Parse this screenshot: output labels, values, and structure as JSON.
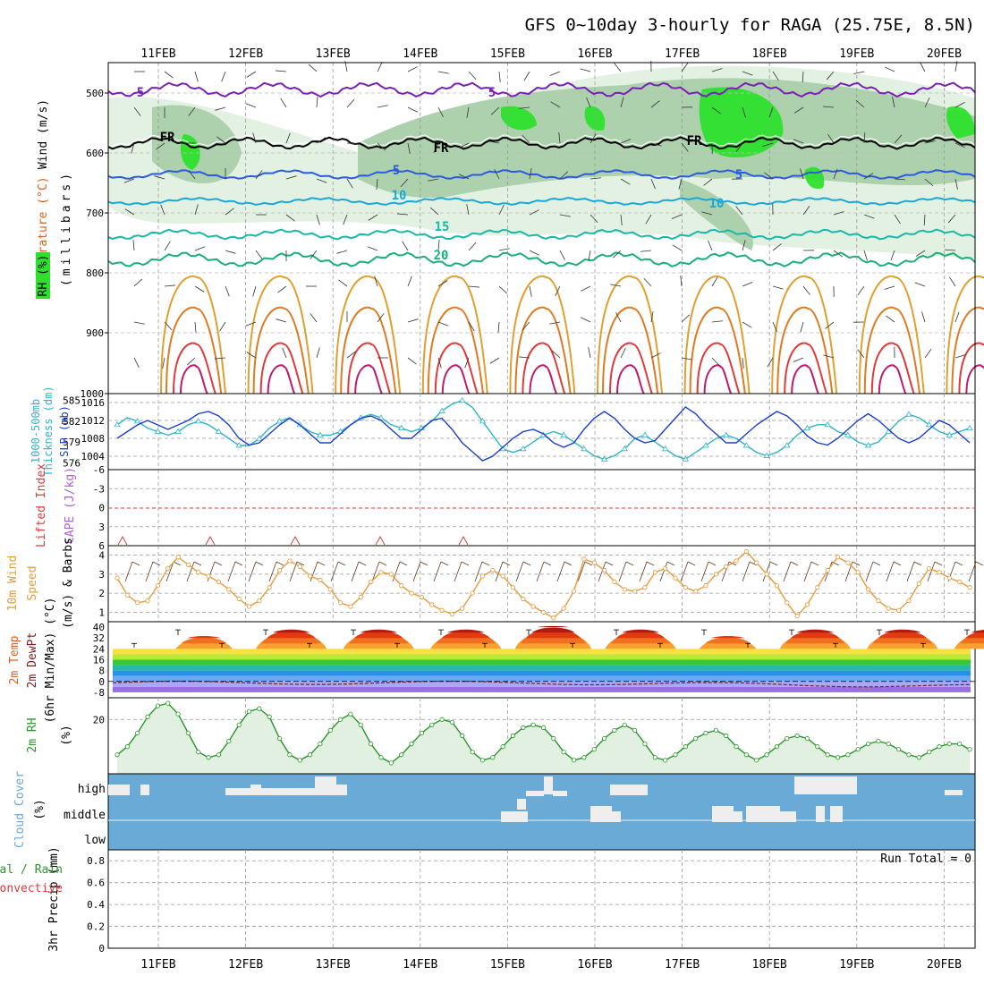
{
  "title": "GFS 0~10day 3-hourly for RAGA (25.75E, 8.5N)",
  "dates": [
    "11FEB",
    "12FEB",
    "13FEB",
    "14FEB",
    "15FEB",
    "16FEB",
    "17FEB",
    "18FEB",
    "19FEB",
    "20FEB"
  ],
  "colors": {
    "rh_dark": "#2ee02e",
    "rh_mid": "#a9cfa9",
    "rh_light": "#e2f0e2",
    "slp": "#1a3fcf",
    "thickness": "#2fb3c8",
    "wind_speed": "#e89a3c",
    "rh2m": "#2a962a",
    "cloud": "#6aaad6",
    "cloud_gap": "#eeeeee",
    "temp_purple": "#7a1fb8",
    "temp_blue": "#2a5be0",
    "temp_cyan": "#1aa8d8",
    "temp_teal": "#1ab8a8",
    "temp_green": "#18b078",
    "temp_orange": "#e0a030",
    "temp_red": "#e03a3a"
  },
  "panels": {
    "sounding": {
      "ylabel_wind": "Wind (m/s)",
      "ylabel_temp": "Temperature (°C)",
      "ylabel_rh": "RH (%)",
      "ylabel_units": "(millibars)",
      "ticks": [
        "500",
        "600",
        "700",
        "800",
        "900",
        "1000"
      ],
      "contour_labels": [
        "5",
        "5",
        "FR",
        "FR",
        "FR",
        "5",
        "5",
        "10",
        "10",
        "15",
        "20"
      ]
    },
    "slp": {
      "ylabel_thick": "1000-500mb",
      "ylabel_thick2": "Thickness (dm)",
      "ylabel_slp": "SLP (mb)",
      "left_ticks": [
        "585",
        "582",
        "579",
        "576"
      ],
      "right_ticks": [
        "1016",
        "1012",
        "1008",
        "1004"
      ]
    },
    "cape": {
      "ylabel_li": "Lifted Index",
      "ylabel_cape": "CAPE (J/kg)",
      "ticks": [
        "-6",
        "-3",
        "0",
        "3",
        "6"
      ]
    },
    "wind": {
      "ylabel1": "10m Wind",
      "ylabel2": "Speed",
      "ylabel3": "(m/s) & Barbs",
      "ticks": [
        "4",
        "3",
        "2",
        "1"
      ]
    },
    "temp": {
      "ylabel1": "2m Temp",
      "ylabel2": "2m DewPt",
      "ylabel3": "(6hr Min/Max) (°C)",
      "ticks": [
        "40",
        "32",
        "24",
        "16",
        "8",
        "0",
        "-8"
      ]
    },
    "rh": {
      "ylabel": "2m RH",
      "units": "(%)",
      "ticks": [
        "20"
      ]
    },
    "cloud": {
      "ylabel": "Cloud Cover",
      "units": "(%)",
      "levels": [
        "high",
        "middle",
        "low"
      ]
    },
    "precip": {
      "ylabel1": "3hr Precip (mm)",
      "ylabel_total": "Total / Rain",
      "ylabel_conv": "Convective",
      "run_total": "Run Total = 0",
      "ticks": [
        "0.8",
        "0.6",
        "0.4",
        "0.2",
        "0"
      ]
    }
  },
  "chart_data": [
    {
      "type": "line",
      "title": "SLP (mb)",
      "x_unit": "3-hourly steps from 10FEB 15Z",
      "ylim": [
        1001,
        1018
      ],
      "series": [
        {
          "name": "SLP (mb)",
          "values": [
            1008,
            1009.5,
            1011,
            1012,
            1011,
            1010,
            1011,
            1012,
            1013.5,
            1014,
            1013,
            1011,
            1008,
            1006.5,
            1007,
            1009,
            1011,
            1012.5,
            1011,
            1009,
            1007,
            1007,
            1009,
            1011,
            1012.5,
            1013,
            1012,
            1010,
            1008,
            1008,
            1010,
            1012,
            1012.5,
            1010,
            1007,
            1005,
            1003,
            1004,
            1006,
            1008,
            1009.5,
            1010,
            1009,
            1007,
            1006,
            1007,
            1010,
            1012.5,
            1014,
            1012.5,
            1010,
            1008,
            1007,
            1007.5,
            1010,
            1012.5,
            1015,
            1013.5,
            1011,
            1009,
            1007,
            1007,
            1009,
            1011,
            1012.5,
            1014,
            1013,
            1011,
            1008.5,
            1007,
            1006.5,
            1008,
            1010,
            1012,
            1013.5,
            1012,
            1010,
            1008,
            1007,
            1008,
            1010,
            1012,
            1011,
            1009,
            1007
          ]
        }
      ]
    },
    {
      "type": "line",
      "title": "1000-500mb Thickness (dm)",
      "ylim": [
        575,
        586
      ],
      "series": [
        {
          "name": "Thickness",
          "values": [
            581.5,
            582.5,
            582,
            581,
            580.5,
            580,
            580.5,
            581.5,
            582,
            581.5,
            580.5,
            579.5,
            578.5,
            578.5,
            579.5,
            581,
            582,
            582.5,
            581.5,
            580.5,
            580,
            580,
            580.5,
            581.5,
            582.5,
            583,
            582.5,
            581.5,
            581,
            580.5,
            581,
            582,
            583.5,
            584.5,
            585,
            584,
            582,
            580,
            578,
            577.5,
            578,
            579,
            580,
            580.5,
            580,
            579,
            578,
            577,
            576.5,
            577,
            578,
            579.5,
            580,
            579,
            578,
            577,
            576.5,
            577.5,
            578.5,
            579.5,
            580,
            579.5,
            578.5,
            577.5,
            577,
            577.5,
            578.5,
            580,
            581,
            581.5,
            581.5,
            580.5,
            580,
            579,
            578.5,
            579,
            580.5,
            582,
            583,
            582.5,
            581.5,
            580.5,
            580,
            580.5,
            581
          ]
        }
      ]
    },
    {
      "type": "line",
      "title": "10m Wind Speed (m/s)",
      "ylim": [
        0.5,
        4.5
      ],
      "series": [
        {
          "name": "Wind Speed",
          "values": [
            2.8,
            1.9,
            1.5,
            1.6,
            2.4,
            3.3,
            3.9,
            3.5,
            3.1,
            2.9,
            2.6,
            2.2,
            1.7,
            1.3,
            1.6,
            2.3,
            3.2,
            3.7,
            3.4,
            2.9,
            2.7,
            2.2,
            1.5,
            1.3,
            1.8,
            2.6,
            3.1,
            3.0,
            2.4,
            2.0,
            1.8,
            1.4,
            1.1,
            0.9,
            1.2,
            2.0,
            2.9,
            3.2,
            2.9,
            2.3,
            1.7,
            1.3,
            1.0,
            0.7,
            1.2,
            2.1,
            3.8,
            3.6,
            3.2,
            2.6,
            2.2,
            2.1,
            2.3,
            3.1,
            3.3,
            2.8,
            2.3,
            2.1,
            2.4,
            3.0,
            3.4,
            3.7,
            4.2,
            3.6,
            3.0,
            2.4,
            1.5,
            0.8,
            1.4,
            2.3,
            3.2,
            3.9,
            3.6,
            3.1,
            2.2,
            1.6,
            1.2,
            1.1,
            1.6,
            2.5,
            3.3,
            3.1,
            2.8,
            2.6,
            2.3
          ]
        }
      ]
    },
    {
      "type": "line",
      "title": "2m RH (%)",
      "ylim": [
        0,
        28
      ],
      "series": [
        {
          "name": "2m RH",
          "values": [
            7,
            10,
            15,
            21,
            25,
            26,
            22,
            15,
            8,
            6,
            7,
            12,
            18,
            23,
            24,
            21,
            13,
            7,
            5,
            7,
            11,
            16,
            20,
            22,
            18,
            11,
            6,
            4,
            7,
            11,
            15,
            18,
            20,
            19,
            14,
            8,
            5,
            6,
            10,
            14,
            17,
            18,
            17,
            13,
            8,
            5,
            6,
            9,
            13,
            16,
            18,
            16,
            11,
            6,
            5,
            7,
            10,
            13,
            15,
            16,
            14,
            10,
            7,
            5,
            7,
            10,
            13,
            14,
            13,
            10,
            7,
            6,
            7,
            9,
            11,
            12,
            11,
            9,
            7,
            6,
            8,
            10,
            11,
            11,
            9
          ]
        }
      ]
    }
  ]
}
